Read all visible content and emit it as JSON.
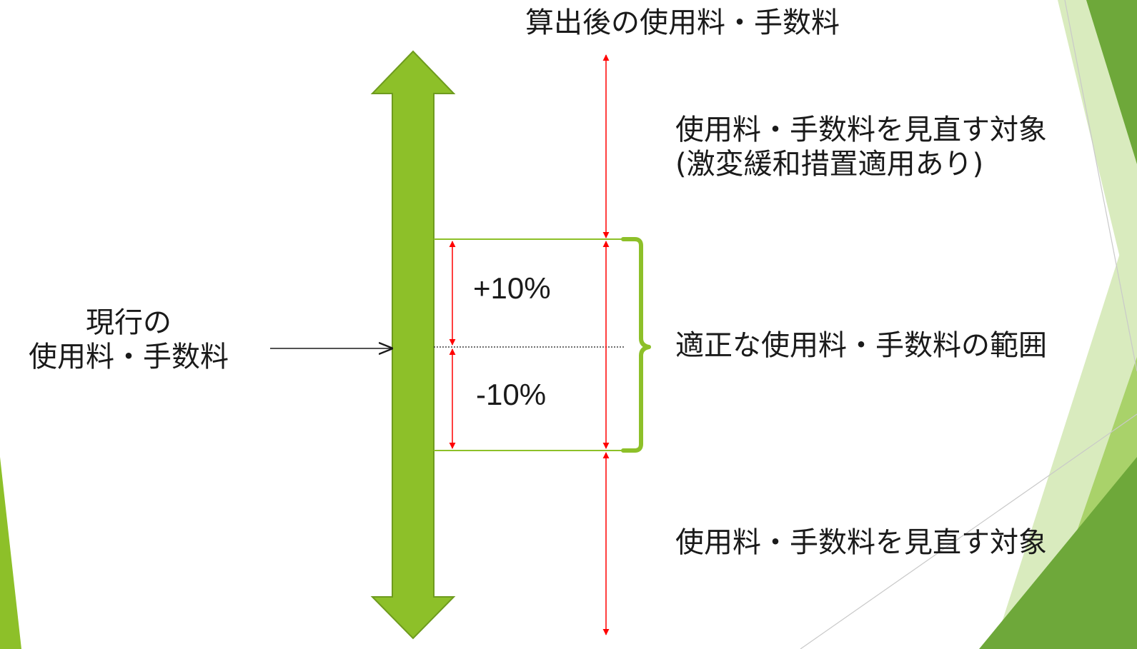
{
  "title": "算出後の使用料・手数料",
  "current": {
    "line1": "現行の",
    "line2": "使用料・手数料"
  },
  "plus_label": "+10%",
  "minus_label": "-10%",
  "regions": {
    "upper": {
      "line1": "使用料・手数料を見直す対象",
      "line2": "(激変緩和措置適用あり)"
    },
    "appropriate": "適正な使用料・手数料の範囲",
    "lower": "使用料・手数料を見直す対象"
  },
  "colors": {
    "main_arrow_fill": "#8dc029",
    "main_arrow_stroke": "#6e9b1e",
    "boundary_line": "#8dc029",
    "range_arrow": "#ff0000",
    "brace": "#8dc029",
    "deco_dark": "#6ea83a",
    "deco_light": "#d9ebbe"
  }
}
